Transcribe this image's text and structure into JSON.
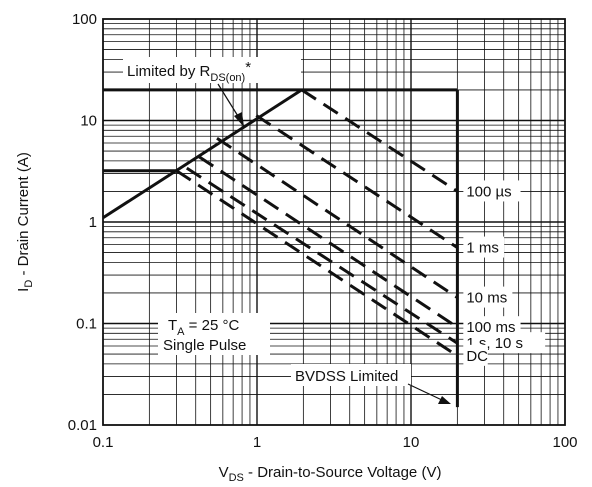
{
  "chart_data": {
    "type": "line",
    "x_scale": "log",
    "y_scale": "log",
    "xlim": [
      0.1,
      100
    ],
    "ylim": [
      0.01,
      100
    ],
    "grid": true,
    "xlabel": {
      "main": "V",
      "sub": "DS",
      "rest": " - Drain-to-Source Voltage (V)"
    },
    "ylabel": {
      "main": "I",
      "sub": "D",
      "rest": " - Drain Current (A)"
    },
    "x_ticks": [
      {
        "v": 0.1,
        "label": "0.1"
      },
      {
        "v": 1,
        "label": "1"
      },
      {
        "v": 10,
        "label": "10"
      },
      {
        "v": 100,
        "label": "100"
      }
    ],
    "y_ticks": [
      {
        "v": 0.01,
        "label": "0.01"
      },
      {
        "v": 0.1,
        "label": "0.1"
      },
      {
        "v": 1,
        "label": "1"
      },
      {
        "v": 10,
        "label": "10"
      },
      {
        "v": 100,
        "label": "100"
      }
    ],
    "boundaries": [
      {
        "name": "rds_on",
        "style": "solid",
        "points": [
          [
            0.1,
            1.1
          ],
          [
            1.95,
            20
          ]
        ]
      },
      {
        "name": "current_limit_pulse",
        "style": "solid",
        "points": [
          [
            0.1,
            20
          ],
          [
            20,
            20
          ]
        ]
      },
      {
        "name": "current_limit_dc",
        "style": "solid",
        "points": [
          [
            0.1,
            3.2
          ],
          [
            0.3,
            3.2
          ]
        ]
      },
      {
        "name": "bvdss",
        "style": "solid",
        "points": [
          [
            20,
            20
          ],
          [
            20,
            0.015
          ]
        ]
      }
    ],
    "series": [
      {
        "name": "100 µs",
        "style": "dashed",
        "points": [
          [
            1.95,
            20
          ],
          [
            20,
            2.0
          ]
        ]
      },
      {
        "name": "1 ms",
        "style": "dashed",
        "points": [
          [
            0.99,
            11.2
          ],
          [
            20,
            0.56
          ]
        ]
      },
      {
        "name": "10 ms",
        "style": "dashed",
        "points": [
          [
            0.55,
            6.7
          ],
          [
            20,
            0.18
          ]
        ]
      },
      {
        "name": "100 ms",
        "style": "dashed",
        "points": [
          [
            0.42,
            4.4
          ],
          [
            20,
            0.092
          ]
        ]
      },
      {
        "name": "1 s, 10 s",
        "style": "dashed",
        "points": [
          [
            0.35,
            3.4
          ],
          [
            20,
            0.064
          ]
        ]
      },
      {
        "name": "DC",
        "style": "dashed",
        "points": [
          [
            0.3,
            3.2
          ],
          [
            20,
            0.048
          ]
        ]
      }
    ],
    "annotations": {
      "rds_label": {
        "main": "Limited by R",
        "sub": "DS(on)",
        "rest": "*"
      },
      "ta_label": {
        "main": "T",
        "sub": "A",
        "rest": " = 25 °C"
      },
      "pulse_label": "Single Pulse",
      "bvdss_label": "BVDSS Limited"
    }
  }
}
